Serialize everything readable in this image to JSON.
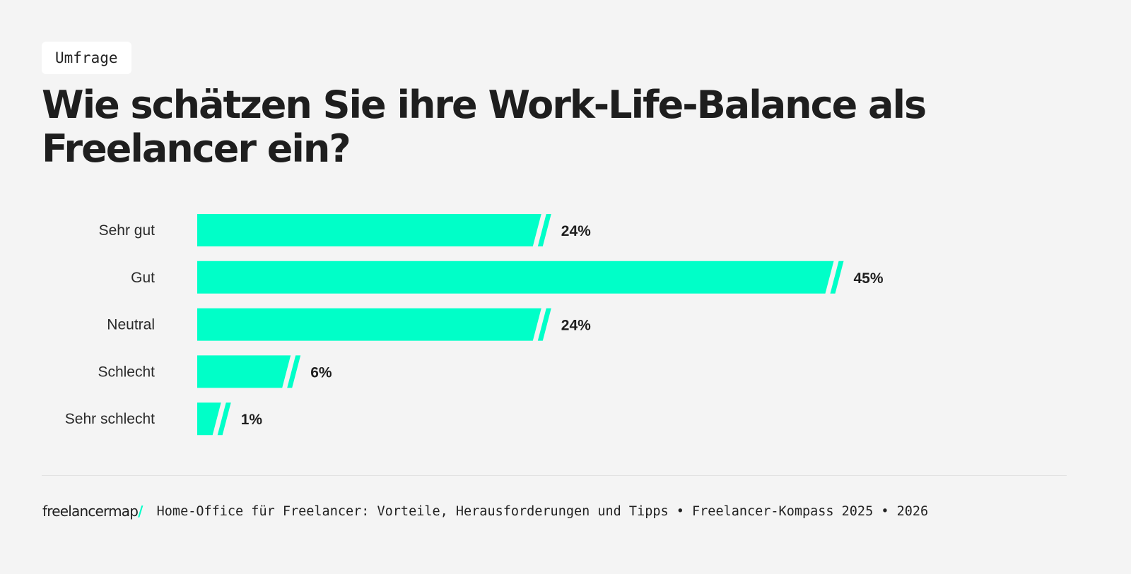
{
  "tag": "Umfrage",
  "title": "Wie schätzen Sie ihre Work-Life-Balance als Freelancer ein?",
  "colors": {
    "bar": "#00ffc8",
    "background": "#f4f4f4",
    "text": "#1e1e1e"
  },
  "chart_data": {
    "type": "bar",
    "orientation": "horizontal",
    "title": "Wie schätzen Sie ihre Work-Life-Balance als Freelancer ein?",
    "categories": [
      "Sehr gut",
      "Gut",
      "Neutral",
      "Schlecht",
      "Sehr schlecht"
    ],
    "values": [
      24,
      45,
      24,
      6,
      1
    ],
    "value_labels": [
      "24%",
      "45%",
      "24%",
      "6%",
      "1%"
    ],
    "unit": "%",
    "grid": false
  },
  "footer": {
    "logo": "freelancermap",
    "logo_slash": "/",
    "source": "Home-Office für Freelancer: Vorteile, Herausforderungen und Tipps • Freelancer-Kompass 2025 • 2026"
  }
}
